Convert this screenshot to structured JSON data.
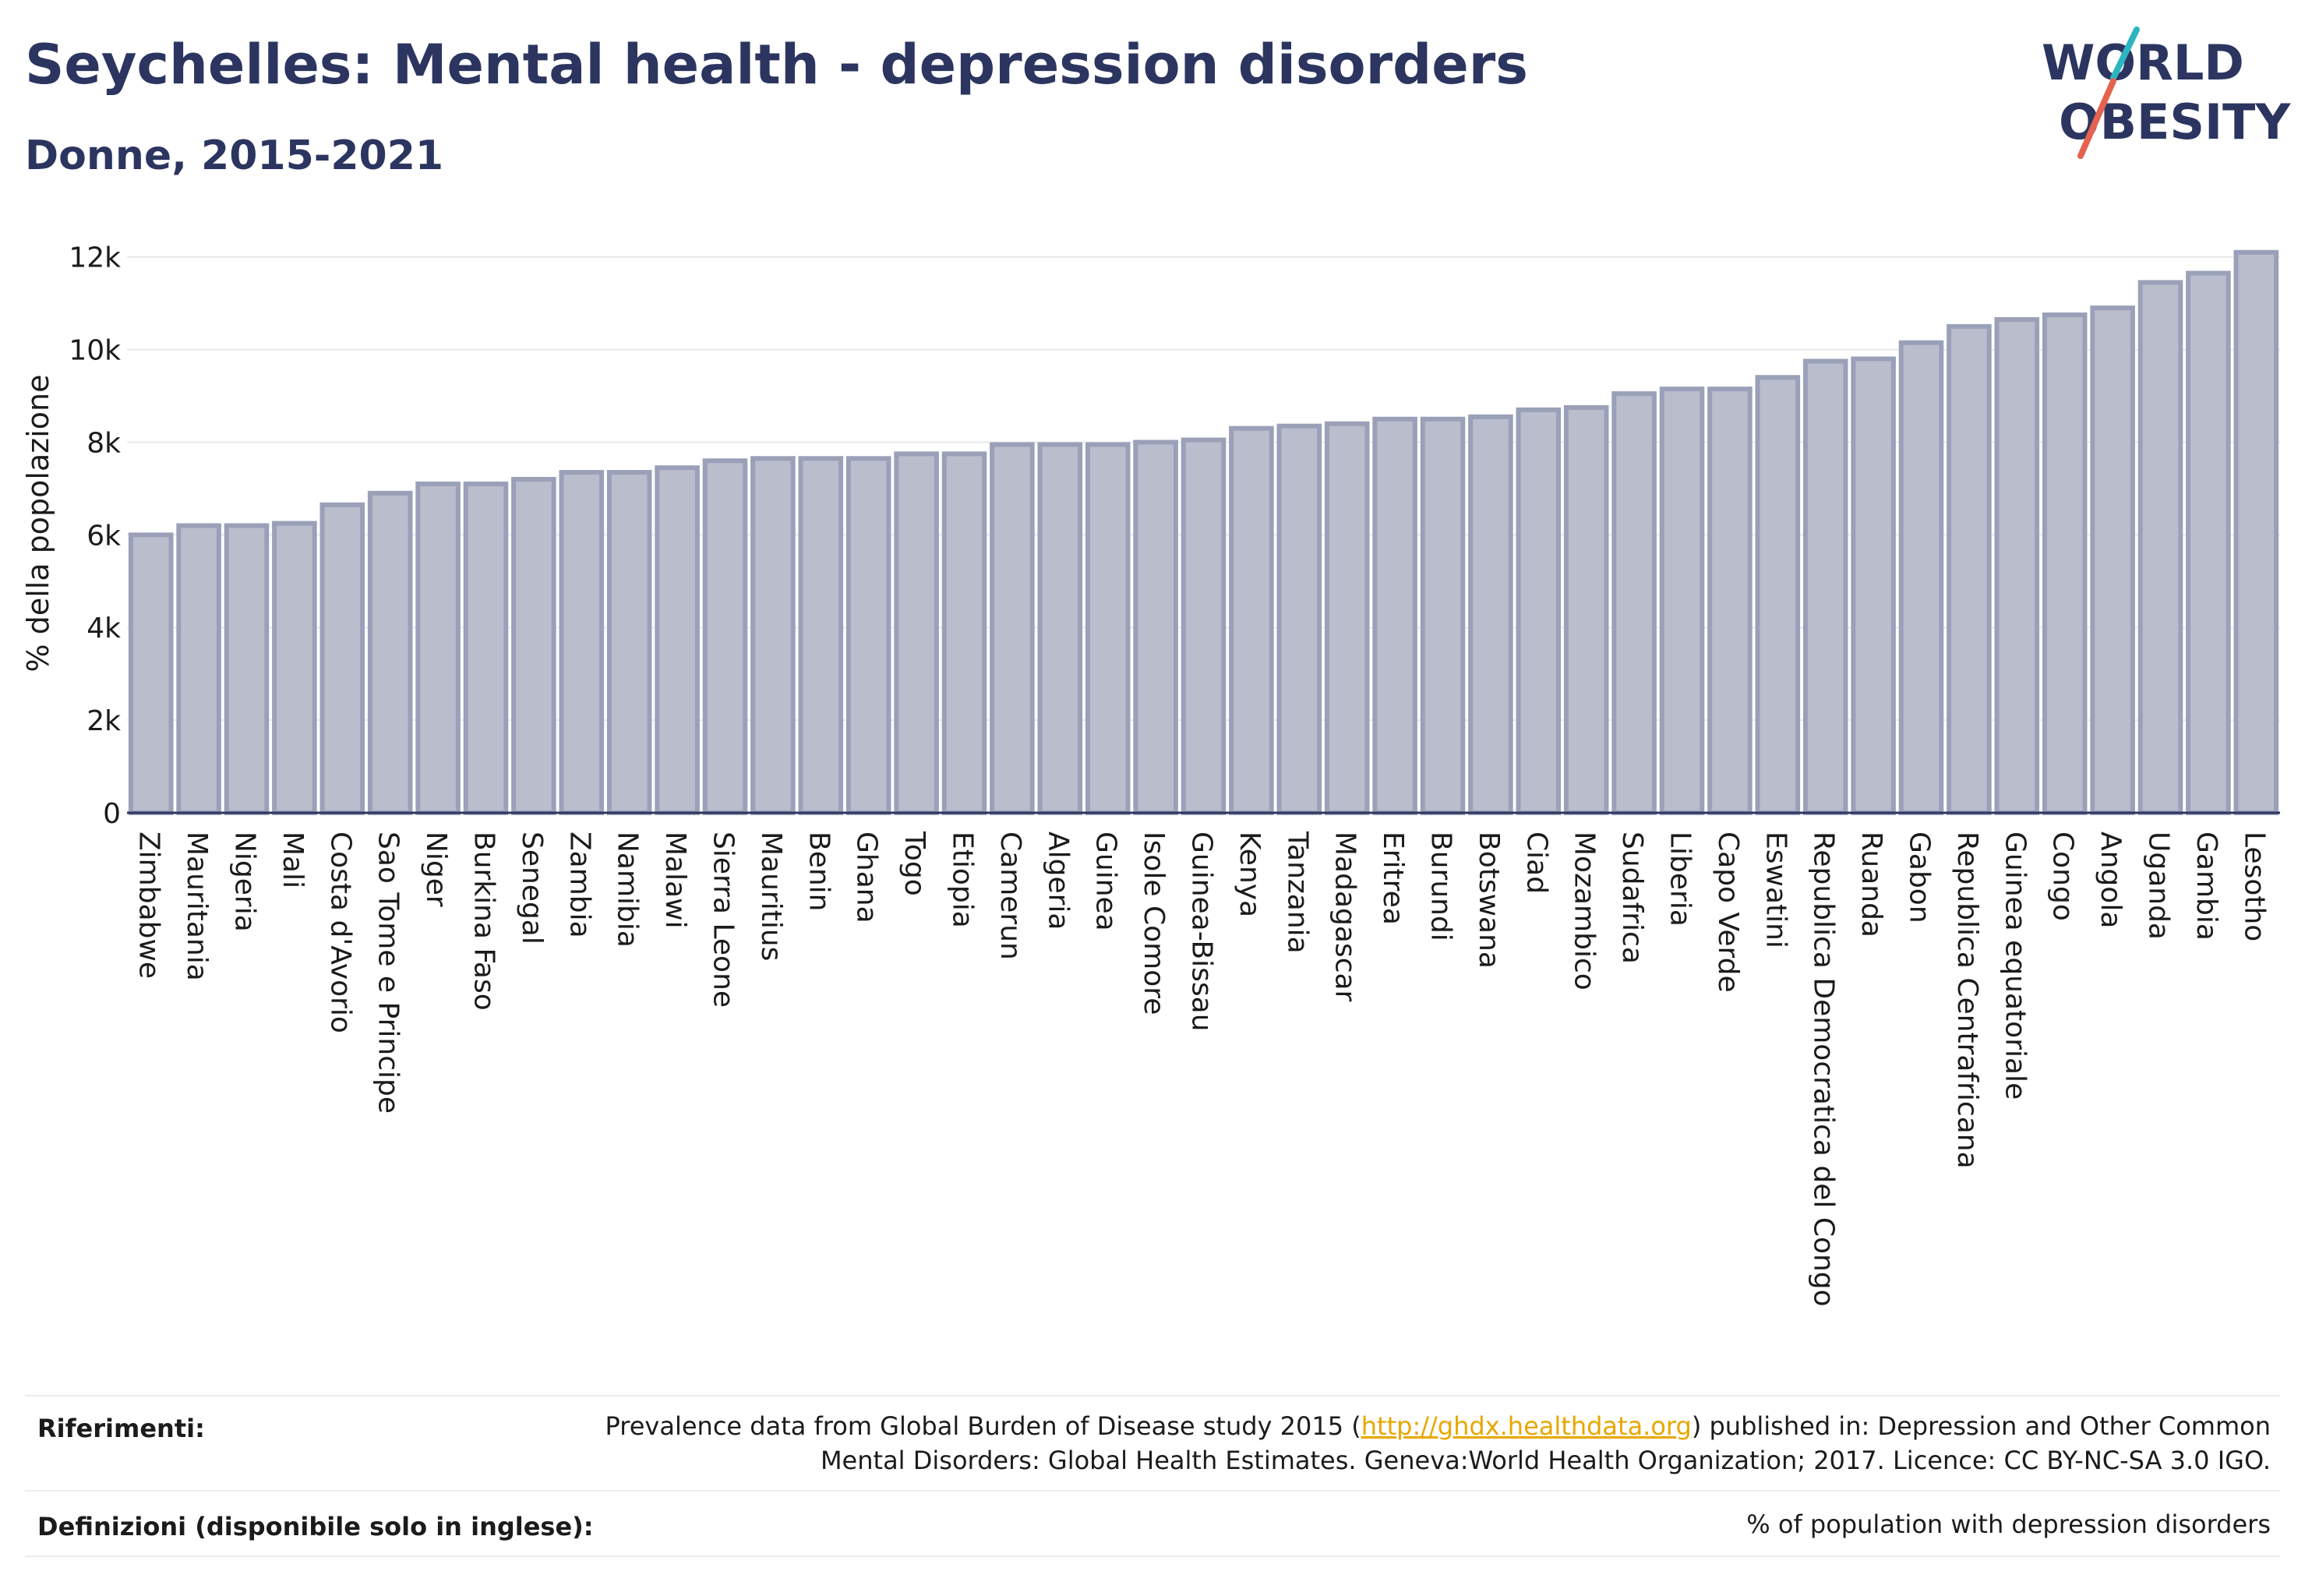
{
  "header": {
    "title": "Seychelles: Mental health - depression disorders",
    "subtitle": "Donne, 2015-2021"
  },
  "logo": {
    "line1": "WORLD",
    "line2": "OBESITY",
    "slash_colors": [
      "#2bb5c0",
      "#e5624f"
    ]
  },
  "colors": {
    "title": "#2c3560",
    "bar_fill": "#b9bdcc",
    "bar_stroke": "#9aa0b8",
    "axis": "#2c3560",
    "grid": "#e6e8ee"
  },
  "chart_data": {
    "type": "bar",
    "ylabel": "% della popolazione",
    "xlabel": "",
    "ylim": [
      0,
      12500
    ],
    "yticks": [
      0,
      2000,
      4000,
      6000,
      8000,
      10000,
      12000
    ],
    "ytick_labels": [
      "0",
      "2k",
      "4k",
      "6k",
      "8k",
      "10k",
      "12k"
    ],
    "grid": true,
    "categories": [
      "Zimbabwe",
      "Mauritania",
      "Nigeria",
      "Mali",
      "Costa d'Avorio",
      "Sao Tome e Principe",
      "Niger",
      "Burkina Faso",
      "Senegal",
      "Zambia",
      "Namibia",
      "Malawi",
      "Sierra Leone",
      "Mauritius",
      "Benin",
      "Ghana",
      "Togo",
      "Etiopia",
      "Camerun",
      "Algeria",
      "Guinea",
      "Isole Comore",
      "Guinea-Bissau",
      "Kenya",
      "Tanzania",
      "Madagascar",
      "Eritrea",
      "Burundi",
      "Botswana",
      "Ciad",
      "Mozambico",
      "Sudafrica",
      "Liberia",
      "Capo Verde",
      "Eswatini",
      "Republica Democratica del Congo",
      "Ruanda",
      "Gabon",
      "Republica Centrafricana",
      "Guinea equatoriale",
      "Congo",
      "Angola",
      "Uganda",
      "Gambia",
      "Lesotho"
    ],
    "values": [
      6000,
      6200,
      6200,
      6250,
      6650,
      6900,
      7100,
      7100,
      7200,
      7350,
      7350,
      7450,
      7600,
      7650,
      7650,
      7650,
      7750,
      7750,
      7950,
      7950,
      7950,
      8000,
      8050,
      8300,
      8350,
      8400,
      8500,
      8500,
      8550,
      8700,
      8750,
      9050,
      9150,
      9150,
      9400,
      9750,
      9800,
      10150,
      10500,
      10650,
      10750,
      10900,
      11450,
      11650,
      12100
    ]
  },
  "footer": {
    "references_label": "Riferimenti:",
    "references_pre": "Prevalence data from Global Burden of Disease study 2015 (",
    "references_link": "http://ghdx.healthdata.org",
    "references_post": ") published in: Depression and Other Common",
    "references_line2": "Mental Disorders: Global Health Estimates. Geneva:World Health Organization; 2017. Licence: CC BY-NC-SA 3.0 IGO.",
    "definitions_label": "Definizioni (disponibile solo in inglese):",
    "definitions_text": "% of population with depression disorders"
  }
}
